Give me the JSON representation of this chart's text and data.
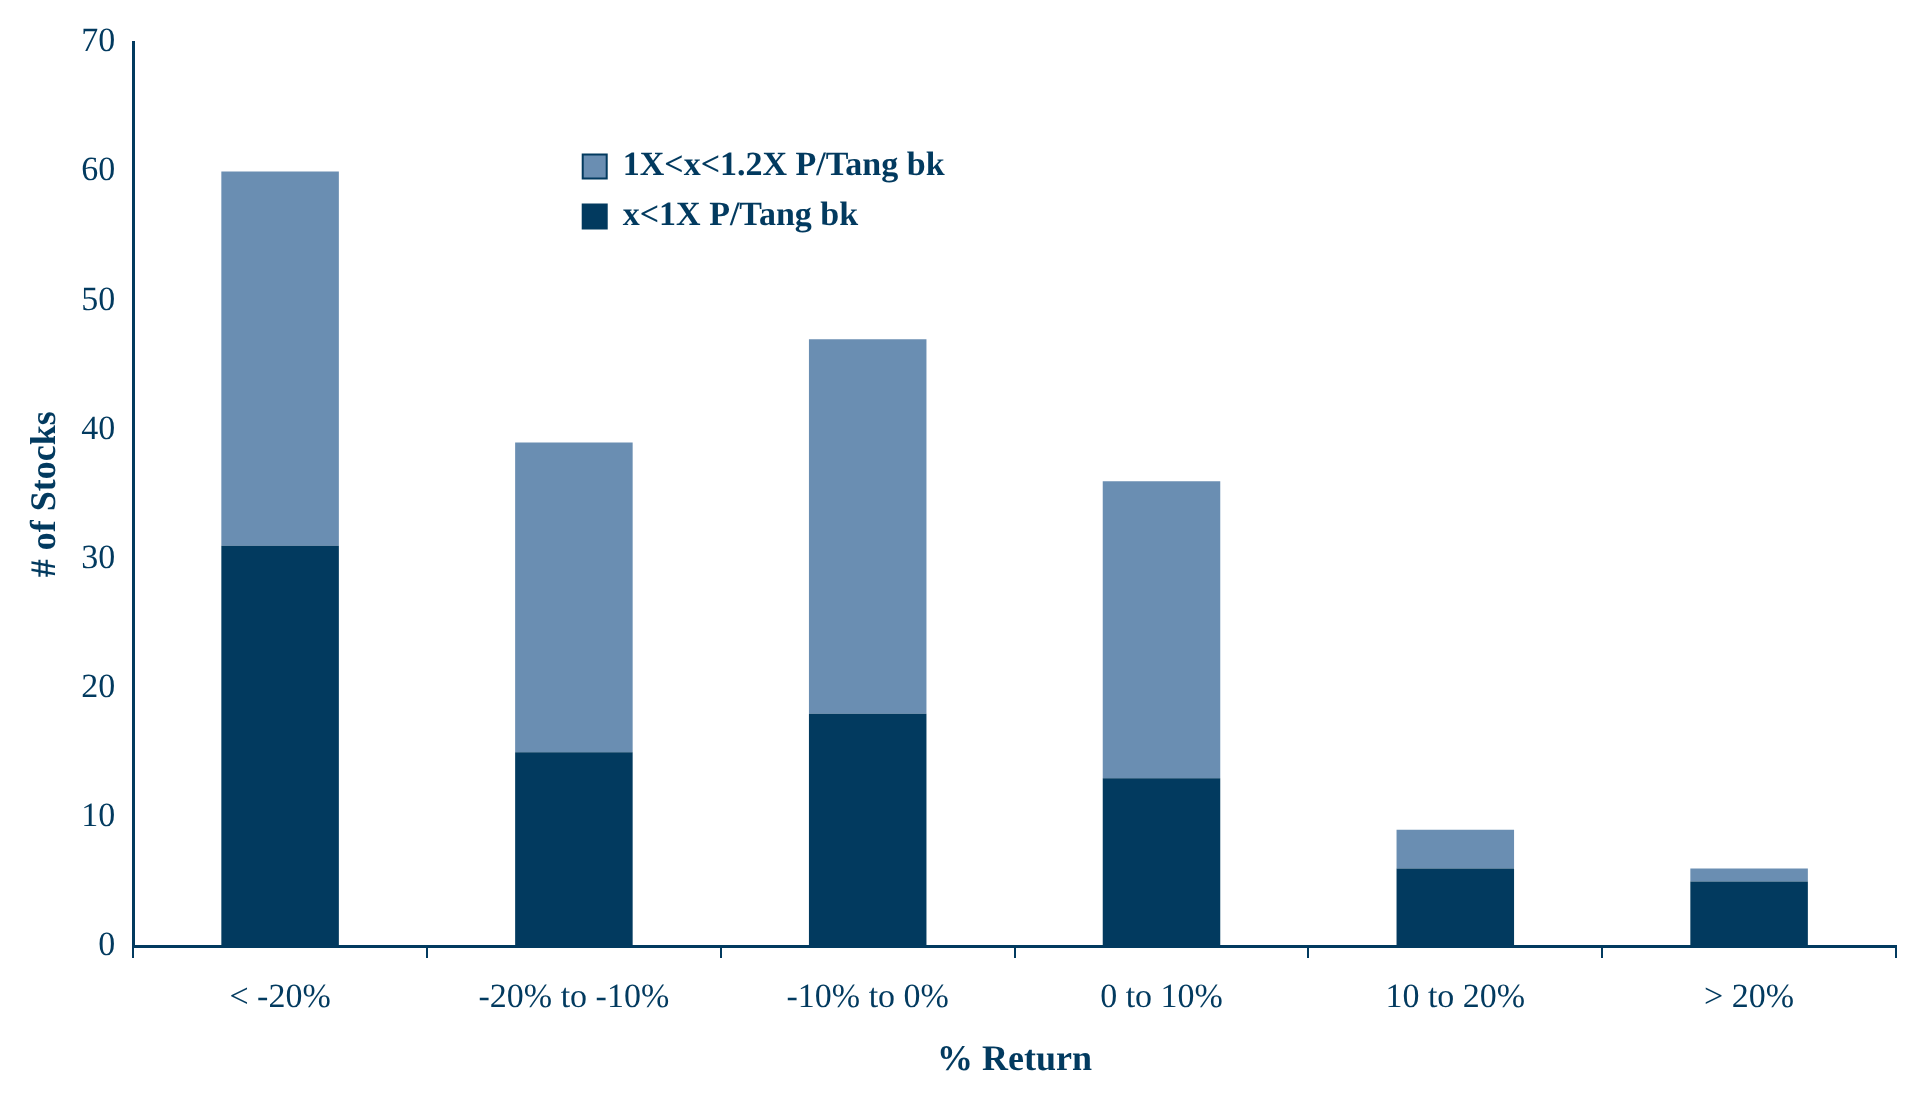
{
  "chart_data": {
    "type": "bar",
    "stacked": true,
    "xlabel": "% Return",
    "ylabel": "# of Stocks",
    "categories": [
      "< -20%",
      "-20% to -10%",
      "-10% to 0%",
      "0 to 10%",
      "10 to 20%",
      "> 20%"
    ],
    "series": [
      {
        "name": "x<1X P/Tang bk",
        "color": "#023a5f",
        "values": [
          31,
          15,
          18,
          13,
          6,
          5
        ]
      },
      {
        "name": "1X<x<1.2X P/Tang bk",
        "color": "#6a8eb2",
        "values": [
          29,
          24,
          29,
          23,
          3,
          1
        ]
      }
    ],
    "ylim": [
      0,
      70
    ],
    "yticks": [
      0,
      10,
      20,
      30,
      40,
      50,
      60,
      70
    ],
    "grid": false,
    "legend": "top left"
  }
}
